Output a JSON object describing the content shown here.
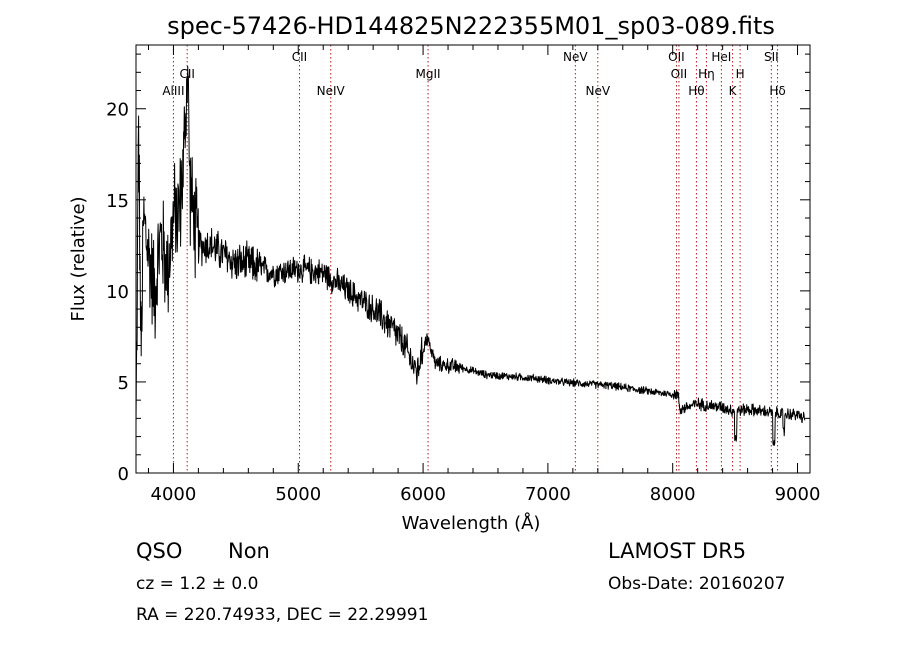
{
  "chart_data": {
    "type": "line",
    "title": "spec-57426-HD144825N222355M01_sp03-089.fits",
    "xlabel": "Wavelength (Å)",
    "ylabel": "Flux (relative)",
    "xlim": [
      3700,
      9100
    ],
    "ylim": [
      0,
      23.5
    ],
    "xticks": [
      4000,
      5000,
      6000,
      7000,
      8000,
      9000
    ],
    "yticks": [
      0,
      5,
      10,
      15,
      20
    ],
    "grid": false,
    "series": [
      {
        "color": "#000000",
        "anchors": [
          [
            3700,
            2.0
          ],
          [
            3720,
            20.0
          ],
          [
            3740,
            6.0
          ],
          [
            3760,
            14.0
          ],
          [
            3800,
            12.0
          ],
          [
            3850,
            10.0
          ],
          [
            3900,
            13.0
          ],
          [
            3950,
            11.0
          ],
          [
            4000,
            14.0
          ],
          [
            4050,
            14.5
          ],
          [
            4080,
            17.0
          ],
          [
            4100,
            20.0
          ],
          [
            4115,
            22.5
          ],
          [
            4130,
            16.0
          ],
          [
            4160,
            14.0
          ],
          [
            4200,
            12.5
          ],
          [
            4300,
            12.5
          ],
          [
            4400,
            12.0
          ],
          [
            4500,
            11.5
          ],
          [
            4600,
            11.5
          ],
          [
            4800,
            11.0
          ],
          [
            5000,
            11.2
          ],
          [
            5200,
            11.0
          ],
          [
            5400,
            10.0
          ],
          [
            5600,
            9.0
          ],
          [
            5750,
            8.0
          ],
          [
            5850,
            7.0
          ],
          [
            5950,
            5.5
          ],
          [
            6030,
            7.5
          ],
          [
            6100,
            6.0
          ],
          [
            6300,
            5.8
          ],
          [
            6500,
            5.4
          ],
          [
            6700,
            5.3
          ],
          [
            6900,
            5.2
          ],
          [
            7100,
            5.0
          ],
          [
            7300,
            4.9
          ],
          [
            7500,
            4.8
          ],
          [
            7700,
            4.6
          ],
          [
            7900,
            4.4
          ],
          [
            8040,
            4.3
          ],
          [
            8060,
            3.5
          ],
          [
            8200,
            3.8
          ],
          [
            8400,
            3.6
          ],
          [
            8500,
            3.4
          ],
          [
            8600,
            3.5
          ],
          [
            8800,
            3.3
          ],
          [
            9000,
            3.2
          ],
          [
            9050,
            3.0
          ]
        ],
        "noise_segments": [
          [
            3700,
            4200,
            3.5
          ],
          [
            4200,
            4700,
            1.3
          ],
          [
            4700,
            5600,
            0.9
          ],
          [
            5600,
            6000,
            1.1
          ],
          [
            6000,
            6300,
            0.5
          ],
          [
            6300,
            8000,
            0.25
          ],
          [
            8000,
            9100,
            0.4
          ]
        ],
        "absorption_dips": [
          [
            3712,
            1.2
          ],
          [
            8505,
            1.5
          ],
          [
            8810,
            1.8
          ],
          [
            8890,
            1.0
          ]
        ]
      }
    ],
    "lines": [
      {
        "label": "AlIII",
        "x": 4000,
        "row": 3
      },
      {
        "label": "CII",
        "x": 4110,
        "row": 2
      },
      {
        "label": "CII",
        "x": 5010,
        "row": 1
      },
      {
        "label": "NeIV",
        "x": 5260,
        "row": 3
      },
      {
        "label": "MgII",
        "x": 6040,
        "row": 2
      },
      {
        "label": "NeV",
        "x": 7220,
        "row": 1
      },
      {
        "label": "NeV",
        "x": 7400,
        "row": 3
      },
      {
        "label": "OII",
        "x": 8030,
        "row": 1
      },
      {
        "label": "OII",
        "x": 8050,
        "row": 2
      },
      {
        "label": "Hθ",
        "x": 8190,
        "row": 3
      },
      {
        "label": "Hη",
        "x": 8270,
        "row": 2
      },
      {
        "label": "HeI",
        "x": 8390,
        "row": 1
      },
      {
        "label": "K",
        "x": 8480,
        "row": 3
      },
      {
        "label": "H",
        "x": 8540,
        "row": 2
      },
      {
        "label": "SII",
        "x": 8790,
        "row": 1
      },
      {
        "label": "Hδ",
        "x": 8840,
        "row": 3
      }
    ]
  },
  "footer": {
    "classification": "QSO",
    "subclass": "Non",
    "cz": "cz = 1.2 ± 0.0",
    "coords": "RA = 220.74933, DEC =  22.29991",
    "survey": "LAMOST DR5",
    "obs_date": "Obs-Date: 20160207"
  },
  "colors": {
    "spectrum": "#000000",
    "line_marker": "#b22222",
    "background": "#ffffff"
  }
}
